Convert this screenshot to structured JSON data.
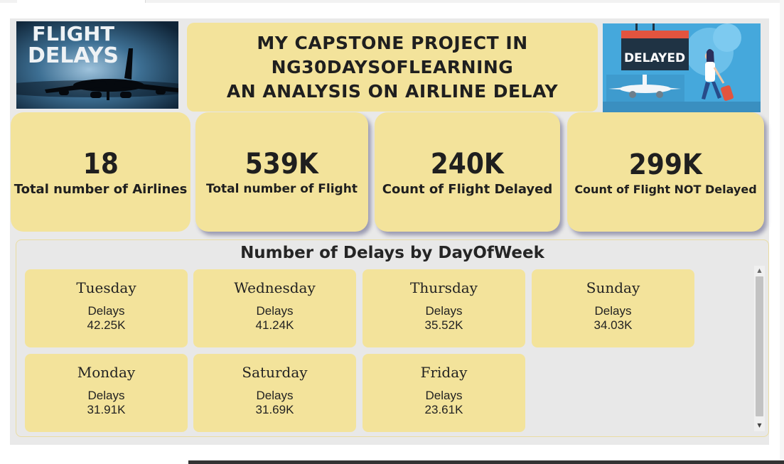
{
  "header": {
    "logo_left_text": [
      "FLIGHT",
      "DELAYS"
    ],
    "title_lines": [
      "MY CAPSTONE PROJECT IN",
      "NG30DAYSOFLEARNING",
      "AN ANALYSIS ON AIRLINE DELAY"
    ],
    "logo_right_sign": "DELAYED"
  },
  "kpis": [
    {
      "value": "18",
      "label": "Total number of Airlines"
    },
    {
      "value": "539K",
      "label": "Total number of Flight"
    },
    {
      "value": "240K",
      "label": "Count of Flight Delayed"
    },
    {
      "value": "299K",
      "label": "Count of Flight NOT Delayed"
    }
  ],
  "delays_panel": {
    "title": "Number of Delays by DayOfWeek",
    "cards": [
      {
        "day": "Tuesday",
        "label": "Delays",
        "value": "42.25K"
      },
      {
        "day": "Wednesday",
        "label": "Delays",
        "value": "41.24K"
      },
      {
        "day": "Thursday",
        "label": "Delays",
        "value": "35.52K"
      },
      {
        "day": "Sunday",
        "label": "Delays",
        "value": "34.03K"
      },
      {
        "day": "Monday",
        "label": "Delays",
        "value": "31.91K"
      },
      {
        "day": "Saturday",
        "label": "Delays",
        "value": "31.69K"
      },
      {
        "day": "Friday",
        "label": "Delays",
        "value": "23.61K"
      }
    ]
  },
  "colors": {
    "card": "#f3e39b",
    "canvas": "#e9e9e9",
    "sky_blue": "#45a8dc",
    "sign_red": "#e2543f",
    "sign_dark": "#1f3344"
  }
}
